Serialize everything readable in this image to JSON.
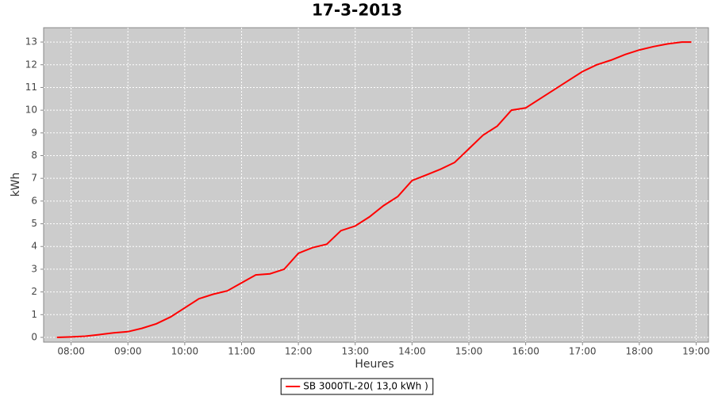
{
  "chart_data": {
    "type": "line",
    "title": "17-3-2013",
    "x_label": "Heures",
    "y_label": "kWh",
    "x": [
      "07:45",
      "08:00",
      "08:15",
      "08:30",
      "08:45",
      "09:00",
      "09:15",
      "09:30",
      "09:45",
      "10:00",
      "10:15",
      "10:30",
      "10:45",
      "11:00",
      "11:15",
      "11:30",
      "11:45",
      "12:00",
      "12:15",
      "12:30",
      "12:45",
      "13:00",
      "13:15",
      "13:30",
      "13:45",
      "14:00",
      "14:15",
      "14:30",
      "14:45",
      "15:00",
      "15:15",
      "15:30",
      "15:45",
      "16:00",
      "16:15",
      "16:30",
      "16:45",
      "17:00",
      "17:15",
      "17:30",
      "17:45",
      "18:00",
      "18:15",
      "18:30",
      "18:45",
      "18:55"
    ],
    "series": [
      {
        "name": "SB 3000TL-20( 13,0 kWh )",
        "color": "#ff0000",
        "values": [
          0,
          0.02,
          0.05,
          0.12,
          0.2,
          0.25,
          0.4,
          0.6,
          0.9,
          1.3,
          1.7,
          1.9,
          2.05,
          2.4,
          2.75,
          2.8,
          3.0,
          3.7,
          3.95,
          4.1,
          4.7,
          4.9,
          5.3,
          5.8,
          6.2,
          6.9,
          7.15,
          7.4,
          7.7,
          8.3,
          8.9,
          9.3,
          10.0,
          10.1,
          10.5,
          10.9,
          11.3,
          11.7,
          12.0,
          12.2,
          12.45,
          12.65,
          12.8,
          12.92,
          13.0,
          13.0
        ]
      }
    ],
    "xlim": [
      "07:31",
      "19:13"
    ],
    "xticks": [
      "08:00",
      "09:00",
      "10:00",
      "11:00",
      "12:00",
      "13:00",
      "14:00",
      "15:00",
      "16:00",
      "17:00",
      "18:00",
      "19:00"
    ],
    "ylim": [
      -0.21,
      13.63
    ],
    "yticks": [
      0,
      1,
      2,
      3,
      4,
      5,
      6,
      7,
      8,
      9,
      10,
      11,
      12,
      13
    ],
    "grid": true,
    "background": "#cccccc",
    "legend": "bottom"
  }
}
